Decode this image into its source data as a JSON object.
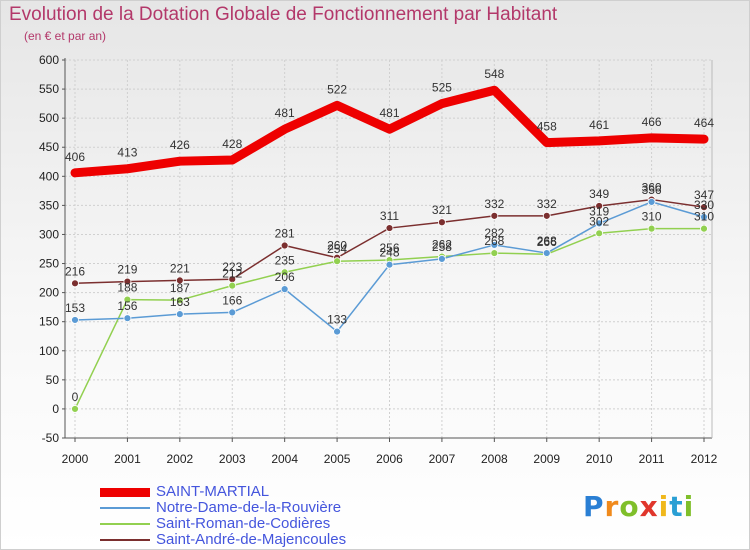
{
  "title": "Evolution de la Dotation Globale de Fonctionnement par Habitant",
  "subtitle": "(en € et par an)",
  "logo": {
    "text": "Proxiti",
    "letters": [
      "P",
      "r",
      "o",
      "x",
      "i",
      "t",
      "i"
    ],
    "colors": [
      "#2a7fd4",
      "#f08a1c",
      "#7fbf2a",
      "#e0362c",
      "#f0b81c",
      "#2a9fd4",
      "#7fbf2a"
    ]
  },
  "chart_data": {
    "type": "line",
    "title": "Evolution de la Dotation Globale de Fonctionnement par Habitant",
    "subtitle": "(en € et par an)",
    "xlabel": "",
    "ylabel": "",
    "x": [
      "2000",
      "2001",
      "2002",
      "2003",
      "2004",
      "2005",
      "2006",
      "2007",
      "2008",
      "2009",
      "2010",
      "2011",
      "2012"
    ],
    "ylim": [
      -50,
      600
    ],
    "yticks": [
      -50,
      0,
      50,
      100,
      150,
      200,
      250,
      300,
      350,
      400,
      450,
      500,
      550,
      600
    ],
    "grid": true,
    "legend_position": "bottom-left",
    "series": [
      {
        "name": "SAINT-MARTIAL",
        "color": "#ee0000",
        "values": [
          406,
          413,
          426,
          428,
          481,
          522,
          481,
          525,
          548,
          458,
          461,
          466,
          464
        ]
      },
      {
        "name": "Notre-Dame-de-la-Rouvière",
        "color": "#5b9bd5",
        "values": [
          153,
          156,
          163,
          166,
          206,
          133,
          248,
          258,
          282,
          268,
          319,
          356,
          330
        ]
      },
      {
        "name": "Saint-Roman-de-Codières",
        "color": "#92d050",
        "values": [
          0,
          188,
          187,
          212,
          235,
          254,
          256,
          262,
          268,
          266,
          302,
          310,
          310
        ]
      },
      {
        "name": "Saint-André-de-Majencoules",
        "color": "#7b2f2f",
        "values": [
          216,
          219,
          221,
          223,
          281,
          260,
          311,
          321,
          332,
          332,
          349,
          360,
          347
        ]
      }
    ]
  }
}
